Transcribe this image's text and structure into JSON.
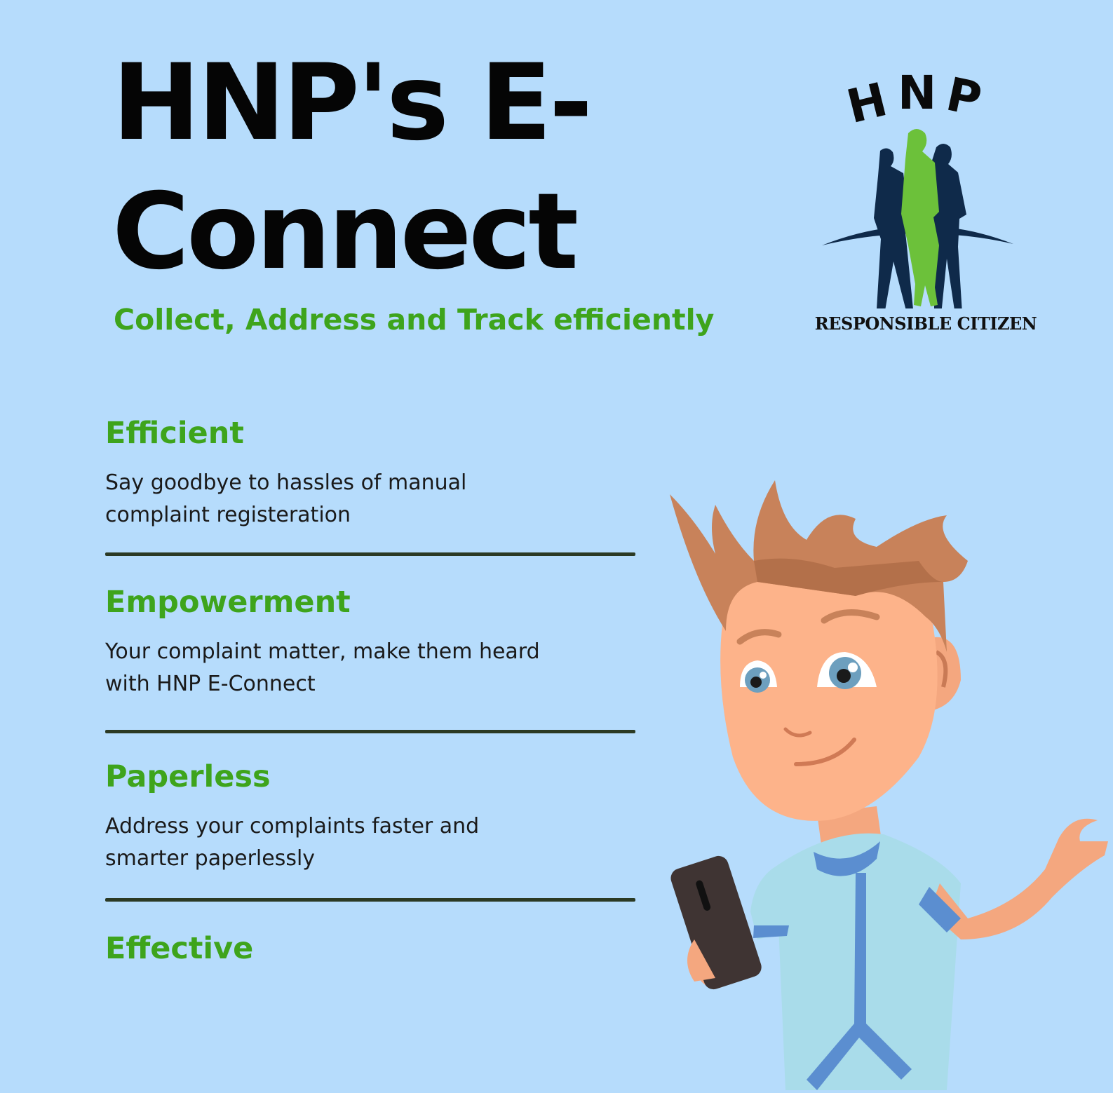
{
  "header": {
    "title": "HNP's E-Connect",
    "subtitle": "Collect, Address and Track efficiently"
  },
  "logo": {
    "wordmark": "HNP",
    "caption": "RESPONSIBLE CITIZEN",
    "colors": {
      "figures": "#0f2a4a",
      "center_figure": "#6cc13a"
    }
  },
  "features": [
    {
      "heading": "Efficient",
      "description": "Say goodbye to hassles of manual complaint registeration"
    },
    {
      "heading": "Empowerment",
      "description": "Your complaint matter, make them heard with HNP E-Connect"
    },
    {
      "heading": "Paperless",
      "description": "Address your complaints faster and smarter paperlessly"
    },
    {
      "heading": "Effective",
      "description": ""
    }
  ],
  "colors": {
    "background": "#b6dcfc",
    "accent": "#3ea41c",
    "divider": "#2b3a24"
  },
  "illustration": {
    "icon": "boy-with-phone-illustration"
  }
}
